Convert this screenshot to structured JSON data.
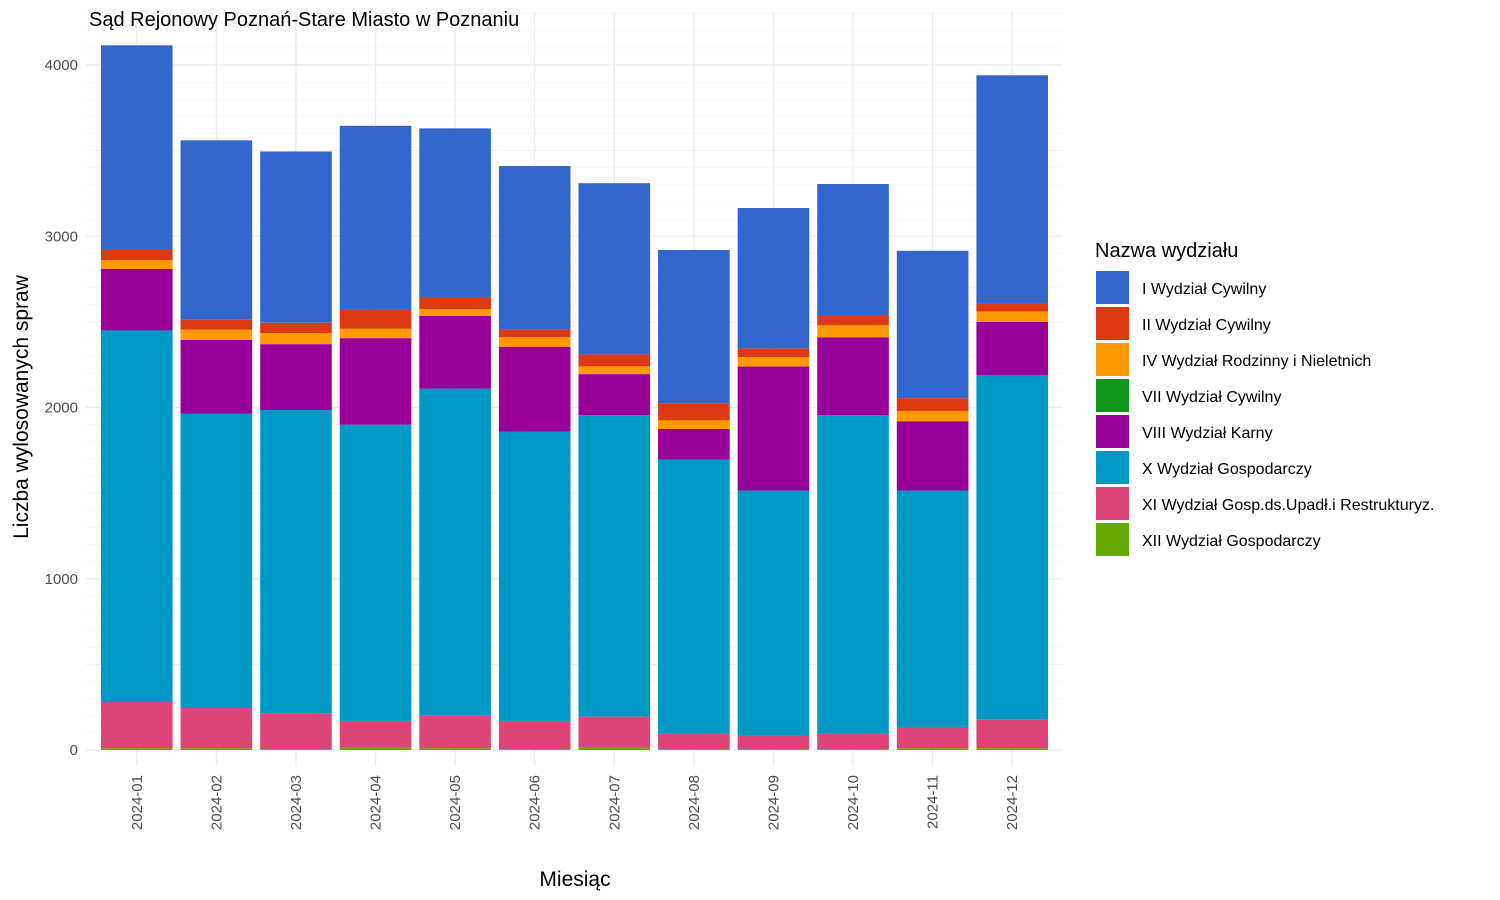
{
  "chart_data": {
    "type": "bar",
    "stacked": true,
    "title": "Sąd Rejonowy Poznań-Stare Miasto w Poznaniu",
    "xlabel": "Miesiąc",
    "ylabel": "Liczba wylosowanych spraw",
    "ylim": [
      0,
      4200
    ],
    "yticks": [
      0,
      1000,
      2000,
      3000,
      4000
    ],
    "grid": true,
    "legend_position": "right",
    "legend_title": "Nazwa wydziału",
    "categories": [
      "2024-01",
      "2024-02",
      "2024-03",
      "2024-04",
      "2024-05",
      "2024-06",
      "2024-07",
      "2024-08",
      "2024-09",
      "2024-10",
      "2024-11",
      "2024-12"
    ],
    "series": [
      {
        "name": "XII Wydział Gospodarczy",
        "color": "#66aa00",
        "values": [
          10,
          10,
          5,
          15,
          10,
          5,
          15,
          5,
          5,
          5,
          10,
          10
        ]
      },
      {
        "name": "XI Wydział Gosp.ds.Upadł.i Restrukturyz.",
        "color": "#dd4477",
        "values": [
          270,
          235,
          210,
          155,
          190,
          165,
          180,
          90,
          80,
          90,
          125,
          170
        ]
      },
      {
        "name": "X Wydział Gospodarczy",
        "color": "#0099c6",
        "values": [
          2170,
          1720,
          1770,
          1730,
          1910,
          1690,
          1760,
          1600,
          1430,
          1860,
          1380,
          2010
        ]
      },
      {
        "name": "VIII Wydział Karny",
        "color": "#990099",
        "values": [
          360,
          430,
          385,
          505,
          425,
          495,
          240,
          180,
          725,
          455,
          405,
          310
        ]
      },
      {
        "name": "VII Wydział Cywilny",
        "color": "#109618",
        "values": [
          0,
          0,
          0,
          0,
          0,
          0,
          0,
          0,
          0,
          0,
          0,
          0
        ]
      },
      {
        "name": "IV Wydział Rodzinny i Nieletnich",
        "color": "#ff9900",
        "values": [
          50,
          60,
          65,
          55,
          40,
          55,
          45,
          50,
          55,
          70,
          60,
          60
        ]
      },
      {
        "name": "II Wydział Cywilny",
        "color": "#dc3912",
        "values": [
          60,
          60,
          60,
          115,
          70,
          45,
          70,
          100,
          50,
          60,
          75,
          50
        ]
      },
      {
        "name": "I Wydział Cywilny",
        "color": "#3366cc",
        "values": [
          1195,
          1045,
          1000,
          1070,
          985,
          955,
          1000,
          895,
          820,
          765,
          860,
          1330
        ]
      }
    ],
    "legend_order": [
      "I Wydział Cywilny",
      "II Wydział Cywilny",
      "IV Wydział Rodzinny i Nieletnich",
      "VII Wydział Cywilny",
      "VIII Wydział Karny",
      "X Wydział Gospodarczy",
      "XI Wydział Gosp.ds.Upadł.i Restrukturyz.",
      "XII Wydział Gospodarczy"
    ]
  }
}
